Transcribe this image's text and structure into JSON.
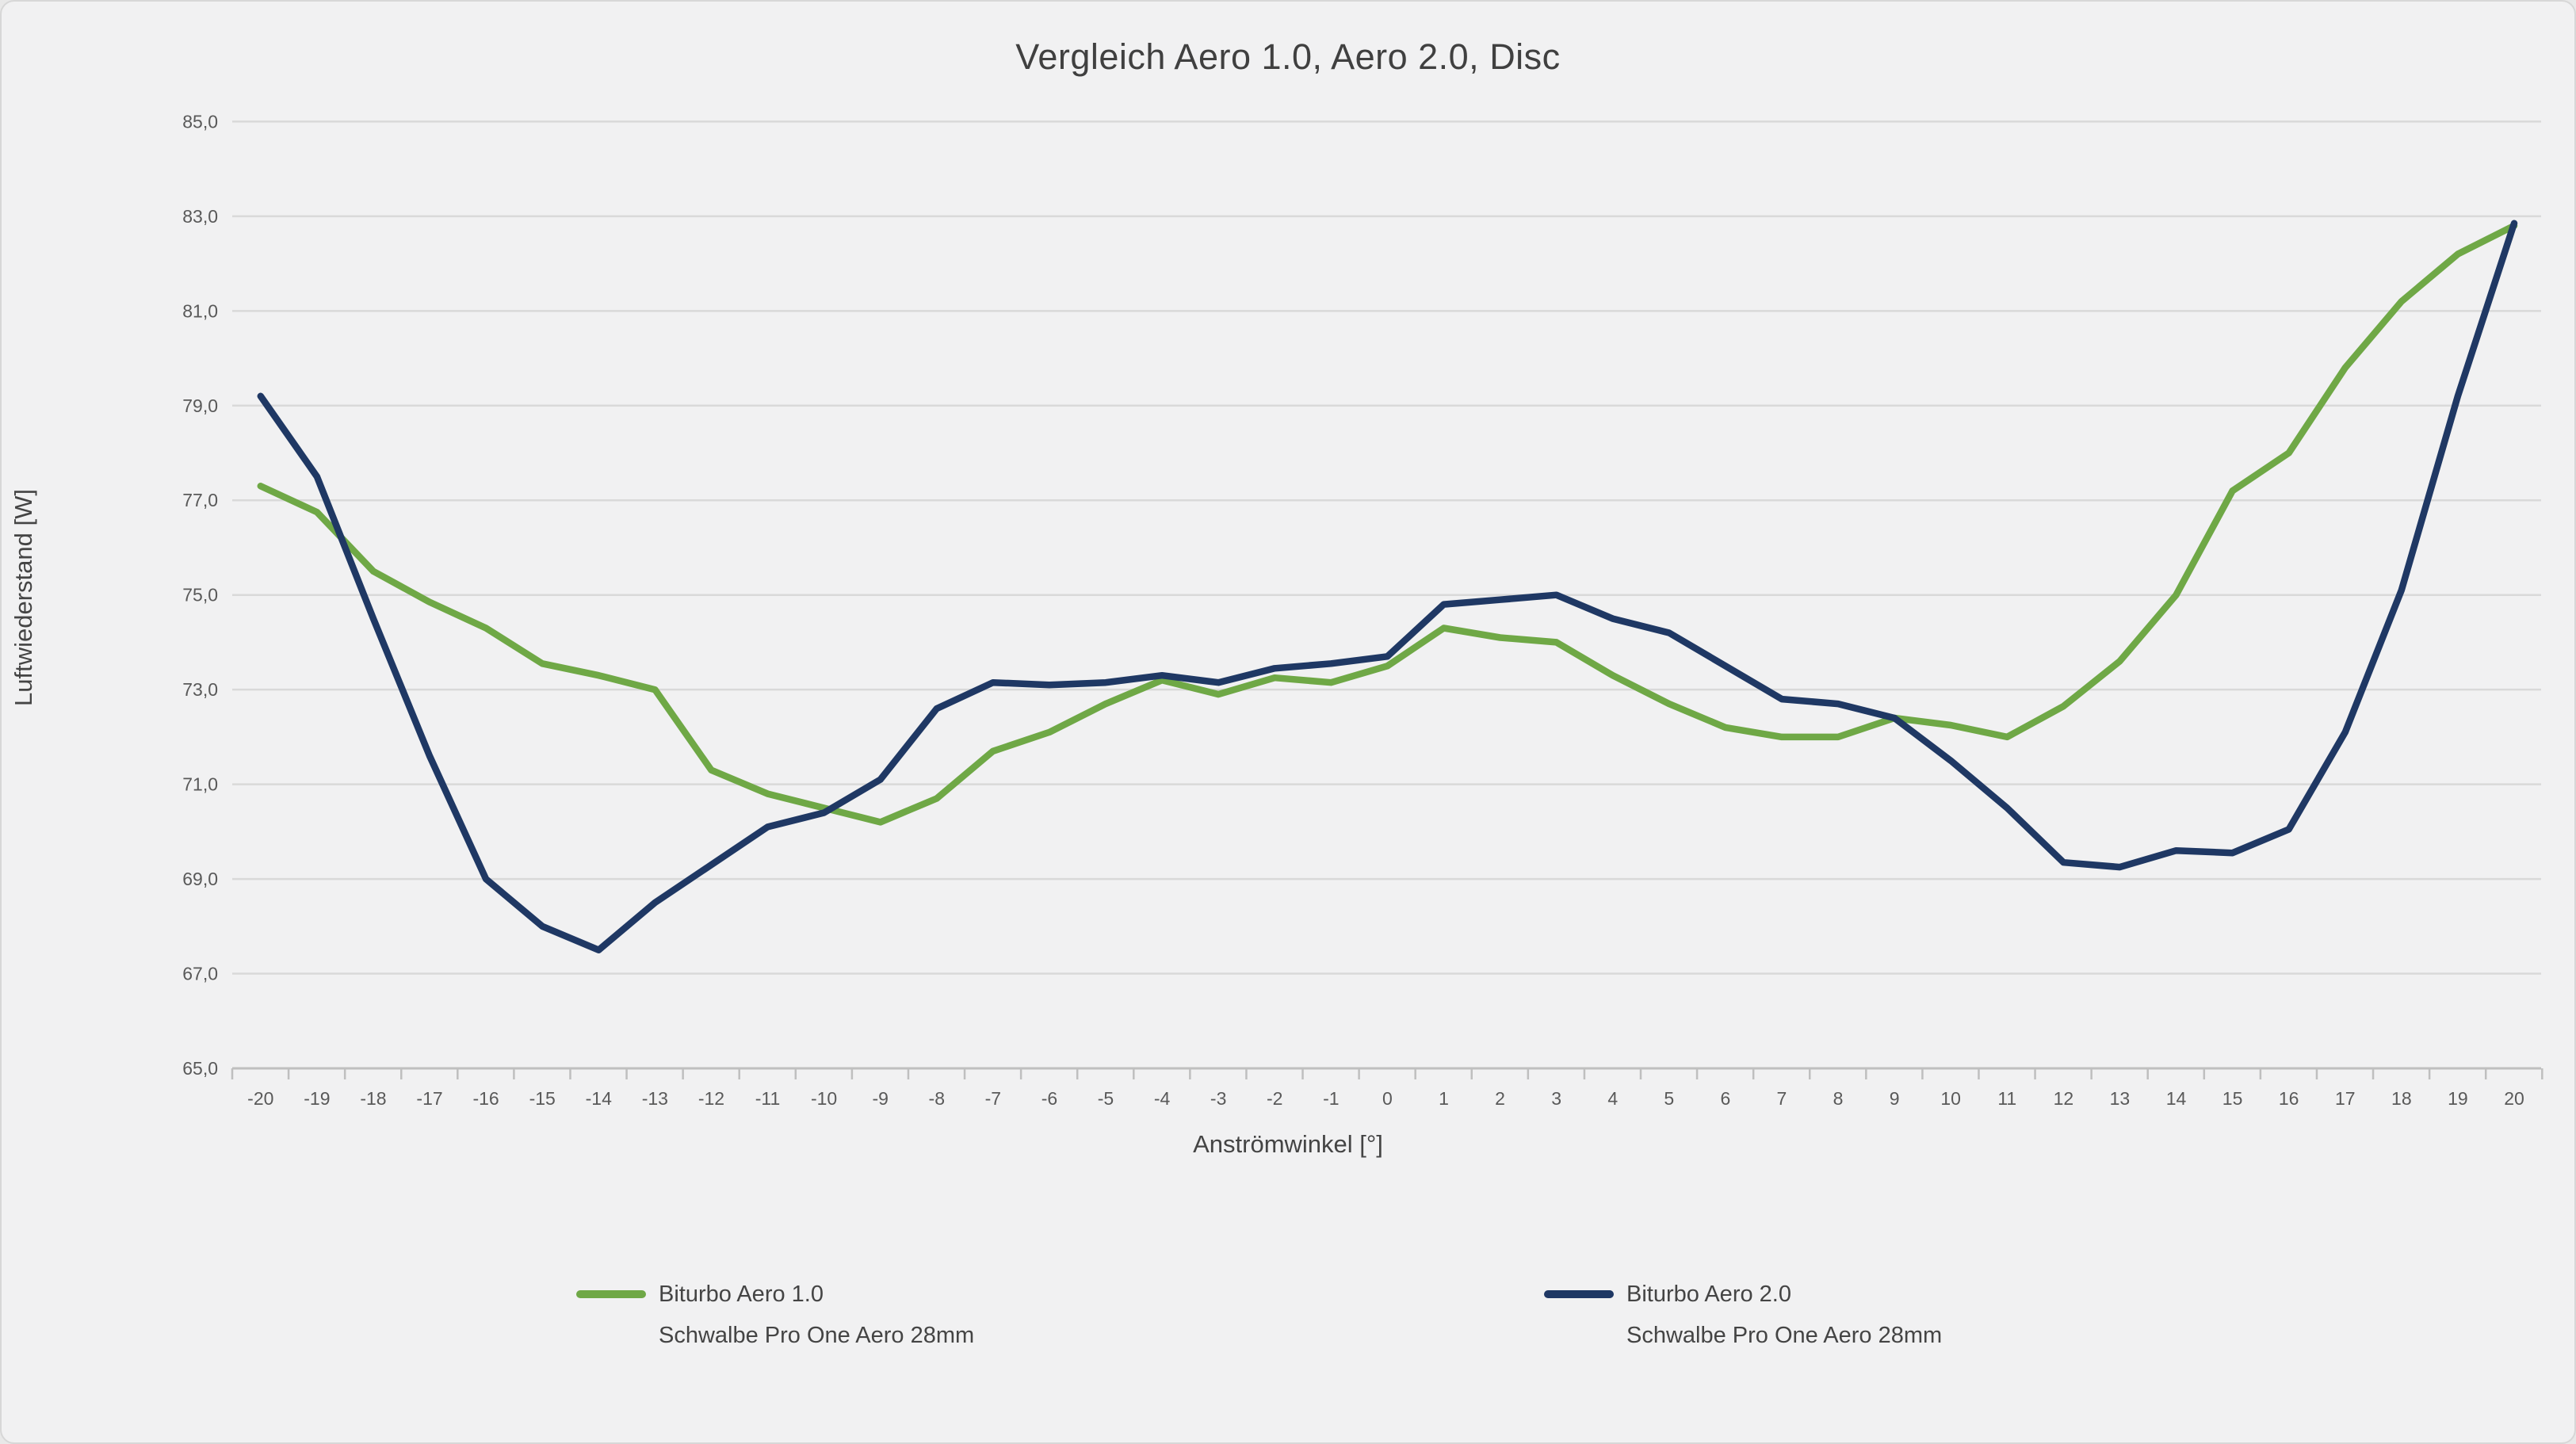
{
  "chart_data": {
    "type": "line",
    "title": "Vergleich Aero 1.0, Aero 2.0, Disc",
    "xlabel": "Anströmwinkel [°]",
    "ylabel": "Luftwiederstand [W]",
    "ylim": [
      65,
      85
    ],
    "ytick_step": 2,
    "decimal_separator": ",",
    "grid": true,
    "legend_position": "bottom",
    "background_color": "#f1f1f2",
    "gridline_color": "#d9d9d9",
    "axis_color": "#bfbfbf",
    "text_color": "#595959",
    "x": [
      -20,
      -19,
      -18,
      -17,
      -16,
      -15,
      -14,
      -13,
      -12,
      -11,
      -10,
      -9,
      -8,
      -7,
      -6,
      -5,
      -4,
      -3,
      -2,
      -1,
      0,
      1,
      2,
      3,
      4,
      5,
      6,
      7,
      8,
      9,
      10,
      11,
      12,
      13,
      14,
      15,
      16,
      17,
      18,
      19,
      20
    ],
    "series": [
      {
        "name": "Biturbo Aero 1.0",
        "subtitle": "Schwalbe Pro One Aero 28mm",
        "color": "#6fa846",
        "values": [
          77.3,
          76.75,
          75.5,
          74.85,
          74.3,
          73.55,
          73.3,
          73.0,
          71.3,
          70.8,
          70.5,
          70.2,
          70.7,
          71.7,
          72.1,
          72.7,
          73.2,
          72.9,
          73.25,
          73.15,
          73.5,
          74.3,
          74.1,
          74.0,
          73.3,
          72.7,
          72.2,
          72.0,
          72.0,
          72.4,
          72.25,
          72.0,
          72.65,
          73.6,
          75.0,
          77.2,
          78.0,
          79.8,
          81.2,
          82.2,
          82.8
        ]
      },
      {
        "name": "Biturbo Aero 2.0",
        "subtitle": "Schwalbe Pro One Aero 28mm",
        "color": "#1f3864",
        "values": [
          79.2,
          77.5,
          74.5,
          71.6,
          69.0,
          68.0,
          67.5,
          68.5,
          69.3,
          70.1,
          70.4,
          71.1,
          72.6,
          73.15,
          73.1,
          73.15,
          73.3,
          73.15,
          73.45,
          73.55,
          73.7,
          74.8,
          74.9,
          75.0,
          74.5,
          74.2,
          73.5,
          72.8,
          72.7,
          72.4,
          71.5,
          70.5,
          69.35,
          69.25,
          69.6,
          69.55,
          70.05,
          72.1,
          75.1,
          79.2,
          82.85
        ]
      }
    ]
  }
}
